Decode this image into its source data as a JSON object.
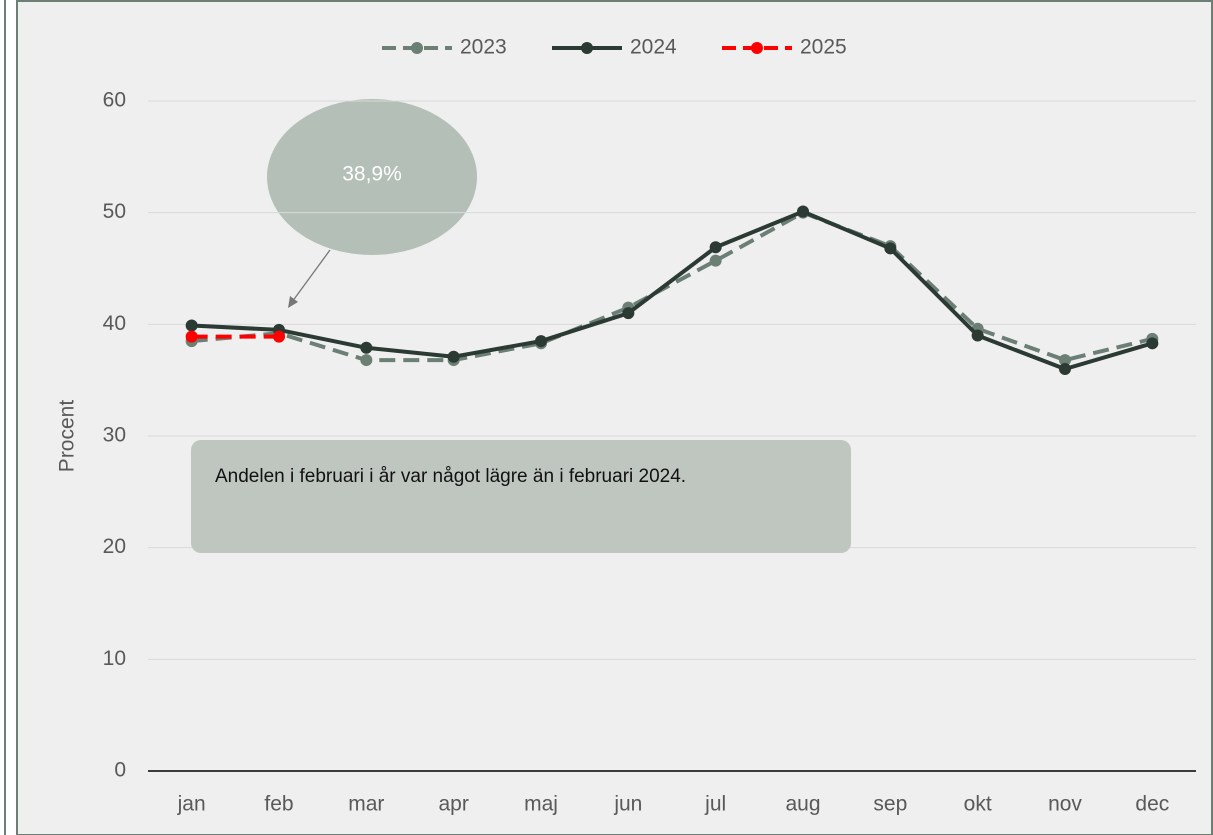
{
  "chart_data": {
    "type": "line",
    "y_label": "Procent",
    "categories": [
      "jan",
      "feb",
      "mar",
      "apr",
      "maj",
      "jun",
      "jul",
      "aug",
      "sep",
      "okt",
      "nov",
      "dec"
    ],
    "series": [
      {
        "name": "2023",
        "color": "#6b7f75",
        "dash": true,
        "values": [
          38.5,
          39.2,
          36.8,
          36.8,
          38.3,
          41.5,
          45.7,
          50.0,
          47.0,
          39.6,
          36.8,
          38.7
        ]
      },
      {
        "name": "2024",
        "color": "#2b3a33",
        "dash": false,
        "values": [
          39.9,
          39.5,
          37.9,
          37.1,
          38.5,
          41.0,
          46.9,
          50.1,
          46.8,
          39.0,
          36.0,
          38.3
        ]
      },
      {
        "name": "2025",
        "color": "#ff0000",
        "dash": true,
        "values": [
          38.9,
          38.9,
          null,
          null,
          null,
          null,
          null,
          null,
          null,
          null,
          null,
          null
        ]
      }
    ],
    "ylim": [
      0,
      60
    ],
    "yticks": [
      0,
      10,
      20,
      30,
      40,
      50,
      60
    ],
    "grid": true,
    "legend": "top",
    "annotations": [
      "38,9%",
      "Andelen i februari i år var något lägre än i februari 2024."
    ]
  }
}
